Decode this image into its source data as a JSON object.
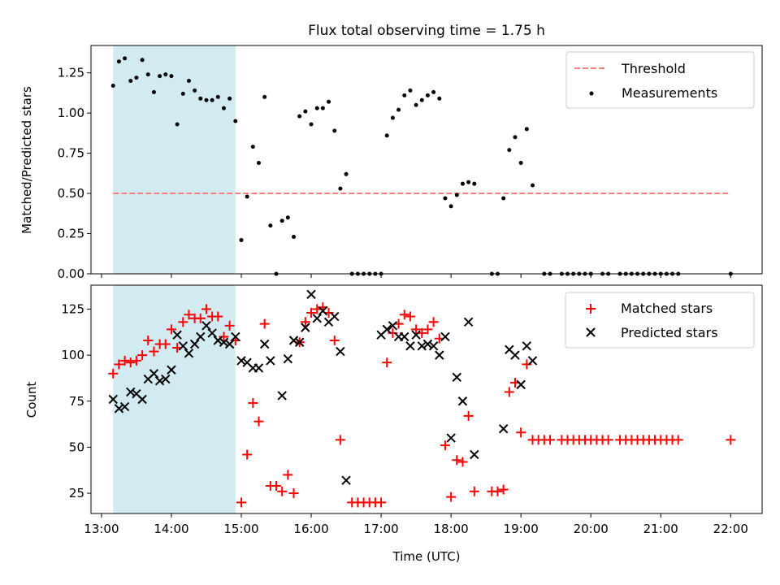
{
  "chart_data": [
    {
      "type": "scatter",
      "title": "Flux total observing time = 1.75 h",
      "xlabel": "",
      "ylabel": "Matched/Predicted stars",
      "ylim": [
        0,
        1.42
      ],
      "yticks": [
        0.0,
        0.25,
        0.5,
        0.75,
        1.0,
        1.25
      ],
      "ytick_labels": [
        "0.00",
        "0.25",
        "0.50",
        "0.75",
        "1.00",
        "1.25"
      ],
      "xlim": [
        12.85,
        22.45
      ],
      "xticks": [
        13,
        14,
        15,
        16,
        17,
        18,
        19,
        20,
        21,
        22
      ],
      "xtick_labels": [],
      "legend_position": "top-right",
      "shaded_interval": {
        "start": "13:10",
        "end": "14:55",
        "color": "#add8e6"
      },
      "threshold": {
        "name": "Threshold",
        "value": 0.5,
        "x_start": "13:10",
        "x_end": "22:00",
        "color": "#ff7f7f",
        "style": "dashed"
      },
      "series": [
        {
          "name": "Measurements",
          "color": "#000000",
          "marker": "dot",
          "points": [
            [
              "13:10",
              1.17
            ],
            [
              "13:15",
              1.32
            ],
            [
              "13:20",
              1.34
            ],
            [
              "13:25",
              1.2
            ],
            [
              "13:30",
              1.22
            ],
            [
              "13:35",
              1.33
            ],
            [
              "13:40",
              1.24
            ],
            [
              "13:45",
              1.13
            ],
            [
              "13:50",
              1.23
            ],
            [
              "13:55",
              1.24
            ],
            [
              "14:00",
              1.23
            ],
            [
              "14:05",
              0.93
            ],
            [
              "14:10",
              1.12
            ],
            [
              "14:15",
              1.2
            ],
            [
              "14:20",
              1.14
            ],
            [
              "14:25",
              1.09
            ],
            [
              "14:30",
              1.08
            ],
            [
              "14:35",
              1.08
            ],
            [
              "14:40",
              1.1
            ],
            [
              "14:45",
              1.03
            ],
            [
              "14:50",
              1.09
            ],
            [
              "14:55",
              0.95
            ],
            [
              "15:00",
              0.21
            ],
            [
              "15:05",
              0.48
            ],
            [
              "15:10",
              0.79
            ],
            [
              "15:15",
              0.69
            ],
            [
              "15:20",
              1.1
            ],
            [
              "15:25",
              0.3
            ],
            [
              "15:30",
              0.0
            ],
            [
              "15:35",
              0.33
            ],
            [
              "15:40",
              0.35
            ],
            [
              "15:45",
              0.23
            ],
            [
              "15:50",
              0.98
            ],
            [
              "15:55",
              1.01
            ],
            [
              "16:00",
              0.93
            ],
            [
              "16:05",
              1.03
            ],
            [
              "16:10",
              1.03
            ],
            [
              "16:15",
              1.07
            ],
            [
              "16:20",
              0.89
            ],
            [
              "16:25",
              0.53
            ],
            [
              "16:30",
              0.62
            ],
            [
              "16:35",
              0.0
            ],
            [
              "16:40",
              0.0
            ],
            [
              "16:45",
              0.0
            ],
            [
              "16:50",
              0.0
            ],
            [
              "16:55",
              0.0
            ],
            [
              "17:00",
              0.0
            ],
            [
              "17:05",
              0.86
            ],
            [
              "17:10",
              0.97
            ],
            [
              "17:15",
              1.02
            ],
            [
              "17:20",
              1.11
            ],
            [
              "17:25",
              1.14
            ],
            [
              "17:30",
              1.05
            ],
            [
              "17:35",
              1.08
            ],
            [
              "17:40",
              1.11
            ],
            [
              "17:45",
              1.13
            ],
            [
              "17:50",
              1.09
            ],
            [
              "17:55",
              0.47
            ],
            [
              "18:00",
              0.42
            ],
            [
              "18:05",
              0.49
            ],
            [
              "18:10",
              0.56
            ],
            [
              "18:15",
              0.57
            ],
            [
              "18:20",
              0.56
            ],
            [
              "18:35",
              0.0
            ],
            [
              "18:40",
              0.0
            ],
            [
              "18:45",
              0.47
            ],
            [
              "18:50",
              0.77
            ],
            [
              "18:55",
              0.85
            ],
            [
              "19:00",
              0.69
            ],
            [
              "19:05",
              0.9
            ],
            [
              "19:10",
              0.55
            ],
            [
              "19:20",
              0.0
            ],
            [
              "19:25",
              0.0
            ],
            [
              "19:35",
              0.0
            ],
            [
              "19:40",
              0.0
            ],
            [
              "19:45",
              0.0
            ],
            [
              "19:50",
              0.0
            ],
            [
              "19:55",
              0.0
            ],
            [
              "20:00",
              0.0
            ],
            [
              "20:10",
              0.0
            ],
            [
              "20:15",
              0.0
            ],
            [
              "20:25",
              0.0
            ],
            [
              "20:30",
              0.0
            ],
            [
              "20:35",
              0.0
            ],
            [
              "20:40",
              0.0
            ],
            [
              "20:45",
              0.0
            ],
            [
              "20:50",
              0.0
            ],
            [
              "20:55",
              0.0
            ],
            [
              "21:00",
              0.0
            ],
            [
              "21:05",
              0.0
            ],
            [
              "21:10",
              0.0
            ],
            [
              "21:15",
              0.0
            ],
            [
              "22:00",
              0.0
            ]
          ]
        }
      ]
    },
    {
      "type": "scatter",
      "title": "",
      "xlabel": "Time (UTC)",
      "ylabel": "Count",
      "ylim": [
        14,
        138
      ],
      "yticks": [
        25,
        50,
        75,
        100,
        125
      ],
      "ytick_labels": [
        "25",
        "50",
        "75",
        "100",
        "125"
      ],
      "xlim": [
        12.85,
        22.45
      ],
      "xticks": [
        13,
        14,
        15,
        16,
        17,
        18,
        19,
        20,
        21,
        22
      ],
      "xtick_labels": [
        "13:00",
        "14:00",
        "15:00",
        "16:00",
        "17:00",
        "18:00",
        "19:00",
        "20:00",
        "21:00",
        "22:00"
      ],
      "legend_position": "top-right",
      "shaded_interval": {
        "start": "13:10",
        "end": "14:55",
        "color": "#add8e6"
      },
      "series": [
        {
          "name": "Matched stars",
          "color": "#ff0000",
          "marker": "plus",
          "points": [
            [
              "13:10",
              90
            ],
            [
              "13:15",
              95
            ],
            [
              "13:20",
              97
            ],
            [
              "13:25",
              96
            ],
            [
              "13:30",
              97
            ],
            [
              "13:35",
              100
            ],
            [
              "13:40",
              108
            ],
            [
              "13:45",
              102
            ],
            [
              "13:50",
              106
            ],
            [
              "13:55",
              106
            ],
            [
              "14:00",
              114
            ],
            [
              "14:05",
              104
            ],
            [
              "14:10",
              118
            ],
            [
              "14:15",
              122
            ],
            [
              "14:20",
              120
            ],
            [
              "14:25",
              120
            ],
            [
              "14:30",
              125
            ],
            [
              "14:35",
              121
            ],
            [
              "14:40",
              121
            ],
            [
              "14:45",
              110
            ],
            [
              "14:50",
              116
            ],
            [
              "14:55",
              108
            ],
            [
              "15:00",
              20
            ],
            [
              "15:05",
              46
            ],
            [
              "15:10",
              74
            ],
            [
              "15:15",
              64
            ],
            [
              "15:20",
              117
            ],
            [
              "15:25",
              29
            ],
            [
              "15:30",
              29
            ],
            [
              "15:35",
              26
            ],
            [
              "15:40",
              35
            ],
            [
              "15:45",
              25
            ],
            [
              "15:50",
              107
            ],
            [
              "15:55",
              118
            ],
            [
              "16:00",
              123
            ],
            [
              "16:05",
              125
            ],
            [
              "16:10",
              126
            ],
            [
              "16:15",
              123
            ],
            [
              "16:20",
              108
            ],
            [
              "16:25",
              54
            ],
            [
              "16:35",
              20
            ],
            [
              "16:40",
              20
            ],
            [
              "16:45",
              20
            ],
            [
              "16:50",
              20
            ],
            [
              "16:55",
              20
            ],
            [
              "17:00",
              20
            ],
            [
              "17:05",
              96
            ],
            [
              "17:10",
              112
            ],
            [
              "17:15",
              117
            ],
            [
              "17:20",
              122
            ],
            [
              "17:25",
              121
            ],
            [
              "17:30",
              114
            ],
            [
              "17:35",
              112
            ],
            [
              "17:40",
              114
            ],
            [
              "17:45",
              118
            ],
            [
              "17:50",
              109
            ],
            [
              "17:55",
              51
            ],
            [
              "18:00",
              23
            ],
            [
              "18:05",
              43
            ],
            [
              "18:10",
              42
            ],
            [
              "18:15",
              67
            ],
            [
              "18:20",
              26
            ],
            [
              "18:35",
              26
            ],
            [
              "18:40",
              26
            ],
            [
              "18:45",
              27
            ],
            [
              "18:50",
              80
            ],
            [
              "18:55",
              85
            ],
            [
              "19:00",
              58
            ],
            [
              "19:05",
              95
            ],
            [
              "19:10",
              54
            ],
            [
              "19:15",
              54
            ],
            [
              "19:20",
              54
            ],
            [
              "19:25",
              54
            ],
            [
              "19:35",
              54
            ],
            [
              "19:40",
              54
            ],
            [
              "19:45",
              54
            ],
            [
              "19:50",
              54
            ],
            [
              "19:55",
              54
            ],
            [
              "20:00",
              54
            ],
            [
              "20:05",
              54
            ],
            [
              "20:10",
              54
            ],
            [
              "20:15",
              54
            ],
            [
              "20:25",
              54
            ],
            [
              "20:30",
              54
            ],
            [
              "20:35",
              54
            ],
            [
              "20:40",
              54
            ],
            [
              "20:45",
              54
            ],
            [
              "20:50",
              54
            ],
            [
              "20:55",
              54
            ],
            [
              "21:00",
              54
            ],
            [
              "21:05",
              54
            ],
            [
              "21:10",
              54
            ],
            [
              "21:15",
              54
            ],
            [
              "22:00",
              54
            ]
          ]
        },
        {
          "name": "Predicted stars",
          "color": "#000000",
          "marker": "x",
          "points": [
            [
              "13:10",
              76
            ],
            [
              "13:15",
              71
            ],
            [
              "13:20",
              72
            ],
            [
              "13:25",
              80
            ],
            [
              "13:30",
              79
            ],
            [
              "13:35",
              76
            ],
            [
              "13:40",
              87
            ],
            [
              "13:45",
              90
            ],
            [
              "13:50",
              86
            ],
            [
              "13:55",
              87
            ],
            [
              "14:00",
              92
            ],
            [
              "14:05",
              111
            ],
            [
              "14:10",
              105
            ],
            [
              "14:15",
              101
            ],
            [
              "14:20",
              106
            ],
            [
              "14:25",
              110
            ],
            [
              "14:30",
              116
            ],
            [
              "14:35",
              112
            ],
            [
              "14:40",
              108
            ],
            [
              "14:45",
              107
            ],
            [
              "14:50",
              106
            ],
            [
              "14:55",
              110
            ],
            [
              "15:00",
              97
            ],
            [
              "15:05",
              96
            ],
            [
              "15:10",
              93
            ],
            [
              "15:15",
              93
            ],
            [
              "15:20",
              106
            ],
            [
              "15:25",
              97
            ],
            [
              "15:35",
              78
            ],
            [
              "15:40",
              98
            ],
            [
              "15:45",
              108
            ],
            [
              "15:50",
              107
            ],
            [
              "15:55",
              115
            ],
            [
              "16:00",
              133
            ],
            [
              "16:05",
              120
            ],
            [
              "16:10",
              124
            ],
            [
              "16:15",
              118
            ],
            [
              "16:20",
              121
            ],
            [
              "16:25",
              102
            ],
            [
              "16:30",
              32
            ],
            [
              "17:00",
              111
            ],
            [
              "17:05",
              114
            ],
            [
              "17:10",
              116
            ],
            [
              "17:15",
              110
            ],
            [
              "17:20",
              110
            ],
            [
              "17:25",
              105
            ],
            [
              "17:30",
              111
            ],
            [
              "17:35",
              105
            ],
            [
              "17:40",
              106
            ],
            [
              "17:45",
              105
            ],
            [
              "17:50",
              100
            ],
            [
              "17:55",
              110
            ],
            [
              "18:00",
              55
            ],
            [
              "18:05",
              88
            ],
            [
              "18:10",
              75
            ],
            [
              "18:15",
              118
            ],
            [
              "18:20",
              46
            ],
            [
              "18:45",
              60
            ],
            [
              "18:50",
              103
            ],
            [
              "18:55",
              100
            ],
            [
              "19:00",
              84
            ],
            [
              "19:05",
              105
            ],
            [
              "19:10",
              97
            ]
          ]
        }
      ]
    }
  ]
}
